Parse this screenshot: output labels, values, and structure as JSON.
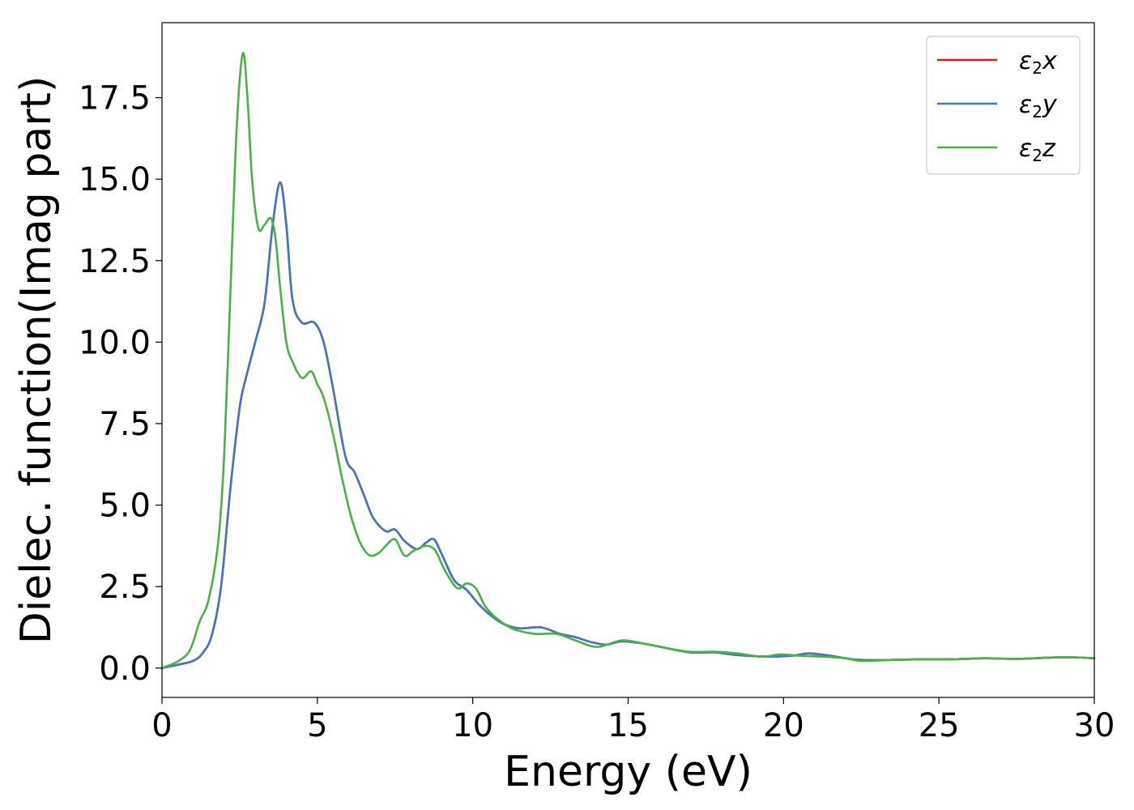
{
  "chart_data": {
    "type": "line",
    "title": "",
    "xlabel": "Energy (eV)",
    "ylabel": "Dielec. function(Imag part)",
    "xlim": [
      0,
      30
    ],
    "ylim": [
      -0.9,
      19.8
    ],
    "xticks": [
      0,
      5,
      10,
      15,
      20,
      25,
      30
    ],
    "xtick_labels": [
      "0",
      "5",
      "10",
      "15",
      "20",
      "25",
      "30"
    ],
    "yticks": [
      0.0,
      2.5,
      5.0,
      7.5,
      10.0,
      12.5,
      15.0,
      17.5
    ],
    "ytick_labels": [
      "0.0",
      "2.5",
      "5.0",
      "7.5",
      "10.0",
      "12.5",
      "15.0",
      "17.5"
    ],
    "grid": false,
    "legend_position": "top-right",
    "series": [
      {
        "name": "ε2x",
        "legend_base": "ε",
        "legend_sub": "2",
        "legend_tail": "x",
        "color": "#e41a1c",
        "x": [
          0,
          0.5,
          1.0,
          1.3,
          1.6,
          1.9,
          2.2,
          2.5,
          2.7,
          3.0,
          3.3,
          3.55,
          3.8,
          4.0,
          4.2,
          4.5,
          4.9,
          5.2,
          5.5,
          5.9,
          6.2,
          6.5,
          6.8,
          7.2,
          7.5,
          7.8,
          8.2,
          8.5,
          8.75,
          9.0,
          9.4,
          9.8,
          10.2,
          10.6,
          11.0,
          11.5,
          12.2,
          12.8,
          13.3,
          13.8,
          14.3,
          14.8,
          15.5,
          16.3,
          17.0,
          17.8,
          18.5,
          19.5,
          20.3,
          20.8,
          21.5,
          22.0,
          22.5,
          23.5,
          24.5,
          25.5,
          26.5,
          27.5,
          28.5,
          29.3,
          30
        ],
        "y": [
          0.0,
          0.1,
          0.22,
          0.45,
          1.0,
          2.5,
          5.5,
          8.0,
          8.9,
          10.0,
          11.2,
          13.5,
          14.9,
          13.6,
          11.3,
          10.6,
          10.6,
          10.0,
          8.6,
          6.5,
          6.0,
          5.3,
          4.6,
          4.2,
          4.25,
          3.9,
          3.65,
          3.85,
          3.95,
          3.5,
          2.7,
          2.4,
          1.95,
          1.6,
          1.35,
          1.22,
          1.25,
          1.05,
          0.95,
          0.8,
          0.72,
          0.82,
          0.75,
          0.6,
          0.48,
          0.48,
          0.4,
          0.35,
          0.38,
          0.45,
          0.38,
          0.3,
          0.25,
          0.25,
          0.27,
          0.27,
          0.3,
          0.28,
          0.32,
          0.33,
          0.3
        ]
      },
      {
        "name": "ε2y",
        "legend_base": "ε",
        "legend_sub": "2",
        "legend_tail": "y",
        "color": "#4479b8",
        "x": [
          0,
          0.5,
          1.0,
          1.3,
          1.6,
          1.9,
          2.2,
          2.5,
          2.7,
          3.0,
          3.3,
          3.55,
          3.8,
          4.0,
          4.2,
          4.5,
          4.9,
          5.2,
          5.5,
          5.9,
          6.2,
          6.5,
          6.8,
          7.2,
          7.5,
          7.8,
          8.2,
          8.5,
          8.75,
          9.0,
          9.4,
          9.8,
          10.2,
          10.6,
          11.0,
          11.5,
          12.2,
          12.8,
          13.3,
          13.8,
          14.3,
          14.8,
          15.5,
          16.3,
          17.0,
          17.8,
          18.5,
          19.5,
          20.3,
          20.8,
          21.5,
          22.0,
          22.5,
          23.5,
          24.5,
          25.5,
          26.5,
          27.5,
          28.5,
          29.3,
          30
        ],
        "y": [
          0.0,
          0.1,
          0.22,
          0.45,
          1.0,
          2.5,
          5.5,
          8.0,
          8.9,
          10.0,
          11.2,
          13.5,
          14.9,
          13.6,
          11.3,
          10.6,
          10.6,
          10.0,
          8.6,
          6.5,
          6.0,
          5.3,
          4.6,
          4.2,
          4.25,
          3.9,
          3.65,
          3.85,
          3.95,
          3.5,
          2.7,
          2.4,
          1.95,
          1.6,
          1.35,
          1.22,
          1.25,
          1.05,
          0.95,
          0.8,
          0.72,
          0.82,
          0.75,
          0.6,
          0.48,
          0.48,
          0.4,
          0.35,
          0.38,
          0.45,
          0.38,
          0.3,
          0.25,
          0.25,
          0.27,
          0.27,
          0.3,
          0.28,
          0.32,
          0.33,
          0.3
        ]
      },
      {
        "name": "ε2z",
        "legend_base": "ε",
        "legend_sub": "2",
        "legend_tail": "z",
        "color": "#4daf4a",
        "x": [
          0,
          0.5,
          0.9,
          1.2,
          1.5,
          1.8,
          2.0,
          2.2,
          2.4,
          2.6,
          2.75,
          2.9,
          3.1,
          3.3,
          3.5,
          3.65,
          3.8,
          4.0,
          4.2,
          4.5,
          4.8,
          5.0,
          5.2,
          5.5,
          5.8,
          6.1,
          6.4,
          6.7,
          7.0,
          7.2,
          7.5,
          7.8,
          8.1,
          8.5,
          8.8,
          9.1,
          9.5,
          9.8,
          10.1,
          10.4,
          10.8,
          11.3,
          12.0,
          12.7,
          13.3,
          14.0,
          14.8,
          15.5,
          16.3,
          17.0,
          17.8,
          18.5,
          19.3,
          19.9,
          20.5,
          21.3,
          22.0,
          22.5,
          23.5,
          24.5,
          25.5,
          26.5,
          27.5,
          28.5,
          29.3,
          30
        ],
        "y": [
          0.0,
          0.2,
          0.55,
          1.4,
          2.1,
          3.8,
          6.5,
          11.5,
          16.5,
          18.85,
          17.5,
          15.0,
          13.5,
          13.6,
          13.8,
          13.2,
          11.7,
          10.0,
          9.4,
          8.9,
          9.1,
          8.7,
          8.3,
          7.2,
          5.8,
          4.6,
          3.8,
          3.45,
          3.55,
          3.75,
          3.95,
          3.45,
          3.6,
          3.75,
          3.6,
          3.0,
          2.45,
          2.6,
          2.45,
          1.9,
          1.5,
          1.2,
          1.05,
          1.05,
          0.85,
          0.65,
          0.85,
          0.75,
          0.6,
          0.5,
          0.5,
          0.45,
          0.35,
          0.42,
          0.38,
          0.35,
          0.3,
          0.22,
          0.25,
          0.27,
          0.27,
          0.3,
          0.28,
          0.32,
          0.33,
          0.3
        ]
      }
    ]
  }
}
